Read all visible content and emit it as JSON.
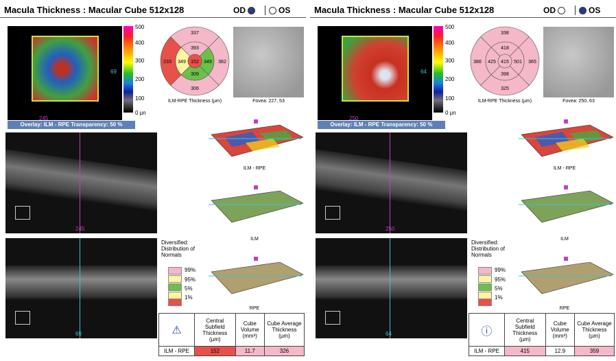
{
  "left": {
    "title": "Macula Thickness : Macular Cube 512x128",
    "eye_od": "OD",
    "eye_os": "OS",
    "selected_eye": "OD",
    "overlay_caption": "Overlay: ILM - RPE  Transparency: 50 %",
    "marker_h": "245",
    "marker_v": "69",
    "scale_labels": [
      "500",
      "400",
      "300",
      "200",
      "100",
      "0 µn"
    ],
    "etdrs": {
      "center": "152",
      "inner_top": "393",
      "inner_left": "349",
      "inner_right": "349",
      "inner_bottom": "309",
      "outer_top": "337",
      "outer_left": "233",
      "outer_right": "382",
      "outer_bottom": "306"
    },
    "etdrs_caption": "ILM-RPE Thickness (µm)",
    "fovea_caption": "Fovea: 227, 53",
    "surface1_label": "ILM - RPE",
    "surface2_label": "ILM",
    "surface3_label": "RPE",
    "bscan1_marker": "245",
    "bscan2_marker": "69",
    "legend": {
      "title": "Diversified: Distribution of Normals",
      "items": [
        "99%",
        "95%",
        "5%",
        "1%"
      ]
    },
    "table": {
      "h1": "Central Subfield Thickness (µm)",
      "h2": "Cube Volume (mm³)",
      "h3": "Cube Average Thickness (µm)",
      "row_label": "ILM - RPE",
      "v1": "152",
      "v2": "11.7",
      "v3": "326",
      "icon": "warning-icon"
    }
  },
  "right": {
    "title": "Macula Thickness : Macular Cube 512x128",
    "eye_od": "OD",
    "eye_os": "OS",
    "selected_eye": "OS",
    "overlay_caption": "Overlay: ILM - RPE  Transparency: 50 %",
    "marker_h": "250",
    "marker_v": "64",
    "scale_labels": [
      "500",
      "400",
      "300",
      "200",
      "100",
      "0 µn"
    ],
    "etdrs": {
      "center": "415",
      "inner_top": "418",
      "inner_left": "425",
      "inner_right": "501",
      "inner_bottom": "398",
      "outer_top": "338",
      "outer_left": "386",
      "outer_right": "365",
      "outer_bottom": "325"
    },
    "etdrs_caption": "ILM-RPE Thickness (µm)",
    "fovea_caption": "Fovea: 250, 63",
    "surface1_label": "ILM - RPE",
    "surface2_label": "ILM",
    "surface3_label": "RPE",
    "bscan1_marker": "250",
    "bscan2_marker": "64",
    "legend": {
      "title": "Diversified: Distribution of Normals",
      "items": [
        "99%",
        "95%",
        "5%",
        "1%"
      ]
    },
    "table": {
      "h1": "Central Subfield Thickness (µm)",
      "h2": "Cube Volume (mm³)",
      "h3": "Cube Average Thickness (µm)",
      "row_label": "ILM - RPE",
      "v1": "415",
      "v2": "12.9",
      "v3": "359",
      "icon": "info-icon"
    }
  },
  "colors": {
    "pink": "#f4b8c8",
    "yellow": "#fff4a0",
    "green": "#6cc04a",
    "red": "#e8504a",
    "white": "#ffffff",
    "marker_magenta": "#c040c0",
    "marker_cyan": "#40c0d0"
  }
}
